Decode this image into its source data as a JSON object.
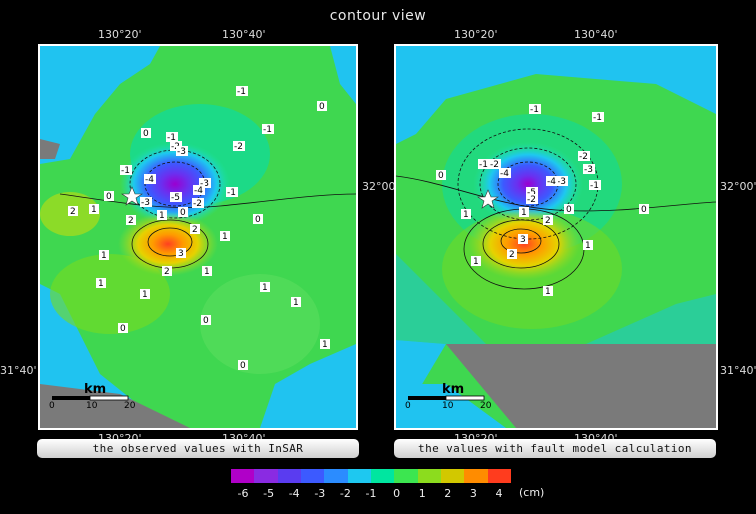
{
  "title": "contour view",
  "left_panel": {
    "caption": "the observed values with InSAR",
    "lon_top": [
      "130°20'",
      "130°40'"
    ],
    "lon_bottom": [
      "130°20'",
      "130°40'"
    ],
    "lat_right": [
      "32°00'",
      "31°40'"
    ],
    "scale_unit": "km",
    "scale_ticks": [
      "0",
      "10",
      "20"
    ]
  },
  "right_panel": {
    "caption": "the values with fault model calculation",
    "lon_top": [
      "130°20'",
      "130°40'"
    ],
    "lon_bottom": [
      "130°20'",
      "130°40'"
    ],
    "lat_right": [
      "32°00'",
      "31°40'"
    ],
    "scale_unit": "km",
    "scale_ticks": [
      "0",
      "10",
      "20"
    ]
  },
  "colorbar": {
    "unit": "(cm)",
    "ticks": [
      "-6",
      "-5",
      "-4",
      "-3",
      "-2",
      "-1",
      "0",
      "1",
      "2",
      "3",
      "4"
    ],
    "colors": [
      "#b000c8",
      "#8a2be2",
      "#5a3cf0",
      "#3c5aff",
      "#2b8cff",
      "#1ec8f0",
      "#00e6a0",
      "#3ce650",
      "#8cdc1e",
      "#d2c800",
      "#ff8c00",
      "#ff3c1e"
    ]
  },
  "contour_labels_left": [
    "0",
    "-1",
    "0",
    "-1",
    "-1",
    "-2",
    "-3",
    "-2",
    "-1",
    "0",
    "-1",
    "-4",
    "-3",
    "-4",
    "-5",
    "-2",
    "-3",
    "0",
    "-1",
    "0",
    "2",
    "1",
    "2",
    "1",
    "2",
    "3",
    "1",
    "2",
    "1",
    "1",
    "1",
    "1",
    "0",
    "0",
    "1",
    "0",
    "1"
  ],
  "contour_labels_right": [
    "-1",
    "-1",
    "-1",
    "-2",
    "-2",
    "-3",
    "0",
    "-4",
    "-1",
    "-3",
    "-4",
    "-5",
    "-2",
    "0",
    "0",
    "1",
    "1",
    "2",
    "3",
    "1",
    "2",
    "1",
    "1"
  ]
}
